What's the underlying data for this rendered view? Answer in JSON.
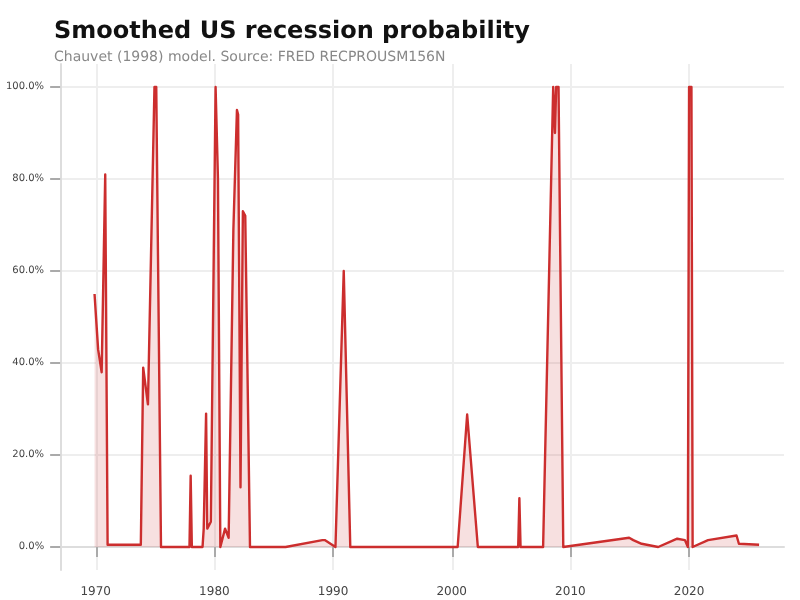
{
  "chart_data": {
    "type": "area",
    "title": "Smoothed US recession probability",
    "subtitle": "Chauvet (1998) model. Source: FRED RECPROUSM156N",
    "x": [
      1969.9,
      1970.2,
      1970.5,
      1970.8,
      1971.0,
      1972.0,
      1973.8,
      1974.0,
      1974.4,
      1974.95,
      1975.1,
      1975.5,
      1977.9,
      1978.0,
      1978.1,
      1979.0,
      1979.1,
      1979.3,
      1979.4,
      1979.7,
      1980.1,
      1980.3,
      1980.5,
      1980.9,
      1981.2,
      1981.6,
      1981.9,
      1982.0,
      1982.2,
      1982.4,
      1982.6,
      1983.0,
      1986.0,
      1989.1,
      1989.3,
      1990.2,
      1990.9,
      1991.45,
      1995.0,
      2000.5,
      2001.3,
      2002.2,
      2005.6,
      2005.7,
      2005.8,
      2007.7,
      2008.55,
      2008.7,
      2008.8,
      2009.0,
      2009.4,
      2014.95,
      2015.3,
      2016.0,
      2017.4,
      2019.0,
      2019.65,
      2019.9,
      2020.0,
      2020.2,
      2020.3,
      2021.6,
      2024.0,
      2024.2,
      2025.9
    ],
    "series": [
      {
        "color": "#cc2e2e",
        "values": [
          55,
          43,
          38,
          81,
          0.5,
          0.5,
          0.5,
          39,
          31,
          100,
          100,
          0,
          0,
          15.5,
          0,
          0,
          4,
          29,
          4,
          5.5,
          100,
          80,
          0,
          4,
          2,
          69,
          95,
          94,
          13,
          73,
          72,
          0,
          0,
          1.5,
          1.5,
          0,
          60,
          0,
          0,
          0,
          28.8,
          0,
          0,
          10.6,
          0,
          0,
          100,
          90,
          100,
          100,
          0,
          2,
          1.5,
          0.7,
          0,
          1.8,
          1.5,
          0,
          100,
          100,
          0,
          1.5,
          2.5,
          0.7,
          0.5
        ]
      }
    ],
    "xlim": [
      1967,
      2028
    ],
    "ylim": [
      -5,
      105
    ],
    "xticks": [
      1970,
      1980,
      1990,
      2000,
      2010,
      2020
    ],
    "yticks": [
      {
        "value": 0,
        "label": "0.0%"
      },
      {
        "value": 20,
        "label": "20.0%"
      },
      {
        "value": 40,
        "label": "40.0%"
      },
      {
        "value": 60,
        "label": "60.0%"
      },
      {
        "value": 80,
        "label": "80.0%"
      },
      {
        "value": 100,
        "label": "100.0%"
      }
    ],
    "grid": true
  }
}
